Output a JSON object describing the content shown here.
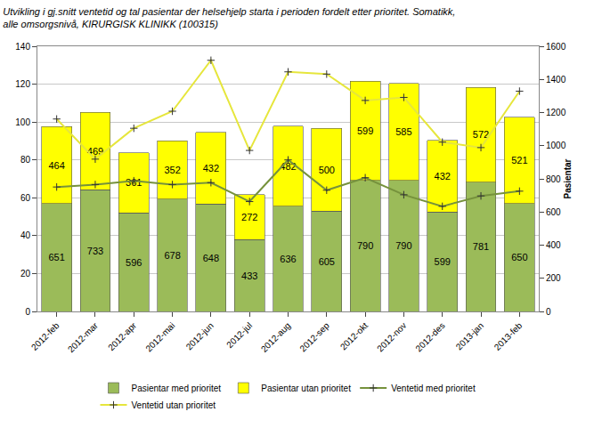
{
  "chart_data": {
    "type": "bar",
    "title": "Utvikling i gj.snitt ventetid og tal pasientar der helsehjelp starta i perioden fordelt etter prioritet. Somatikk,\nalle omsorgsnivå, KIRURGISK KLINIKK (100315)",
    "categories": [
      "2012-feb",
      "2012-mar",
      "2012-apr",
      "2012-mai",
      "2012-jun",
      "2012-jul",
      "2012-aug",
      "2012-sep",
      "2012-okt",
      "2012-nov",
      "2012-des",
      "2013-jan",
      "2013-feb"
    ],
    "stacked": true,
    "grid": true,
    "legend": "bottom",
    "y2_label": "Pasientar",
    "ylim": [
      0,
      140
    ],
    "yticks": [
      0,
      20,
      40,
      60,
      80,
      100,
      120,
      140
    ],
    "y2lim": [
      0,
      1600
    ],
    "y2ticks": [
      0,
      200,
      400,
      600,
      800,
      1000,
      1200,
      1400,
      1600
    ],
    "series": [
      {
        "name": "Pasientar med prioritet",
        "type": "bar",
        "axis": "y2",
        "color": "#9bbb59",
        "data_labels": true,
        "values": [
          651,
          733,
          596,
          678,
          648,
          433,
          636,
          605,
          790,
          790,
          599,
          781,
          650
        ]
      },
      {
        "name": "Pasientar utan prioritet",
        "type": "bar",
        "axis": "y2",
        "color": "#ffff00",
        "data_labels": true,
        "values": [
          464,
          469,
          361,
          352,
          432,
          272,
          482,
          500,
          599,
          585,
          432,
          572,
          521
        ]
      },
      {
        "name": "Ventetid med prioritet",
        "type": "line",
        "color": "#76923c",
        "marker": "cross",
        "values": [
          65.7,
          67,
          69,
          67,
          68,
          58,
          80,
          64,
          70.6,
          61.6,
          55.5,
          61,
          63.5
        ]
      },
      {
        "name": "Ventetid utan prioritet",
        "type": "line",
        "color": "#e6e63c",
        "marker": "cross",
        "values": [
          101.6,
          80.4,
          96.7,
          105.7,
          132.6,
          85,
          126.5,
          125.3,
          111.4,
          113,
          89.4,
          86.5,
          116.3
        ]
      }
    ]
  }
}
